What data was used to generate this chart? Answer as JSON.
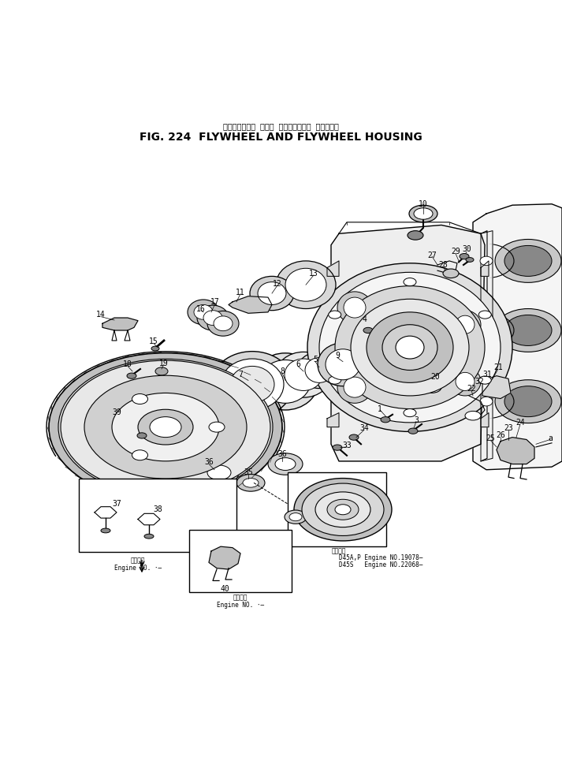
{
  "title_jp": "フライホイール および フライホイール ハウジング",
  "title_en": "FIG. 224  FLYWHEEL AND FLYWHEEL HOUSING",
  "bg_color": "#ffffff",
  "line_color": "#000000",
  "fig_width": 7.13,
  "fig_height": 9.88,
  "dpi": 100,
  "note3_line1": "D45A,P Engine NO.19078–",
  "note3_line2": "D45S   Engine NO.22068–"
}
